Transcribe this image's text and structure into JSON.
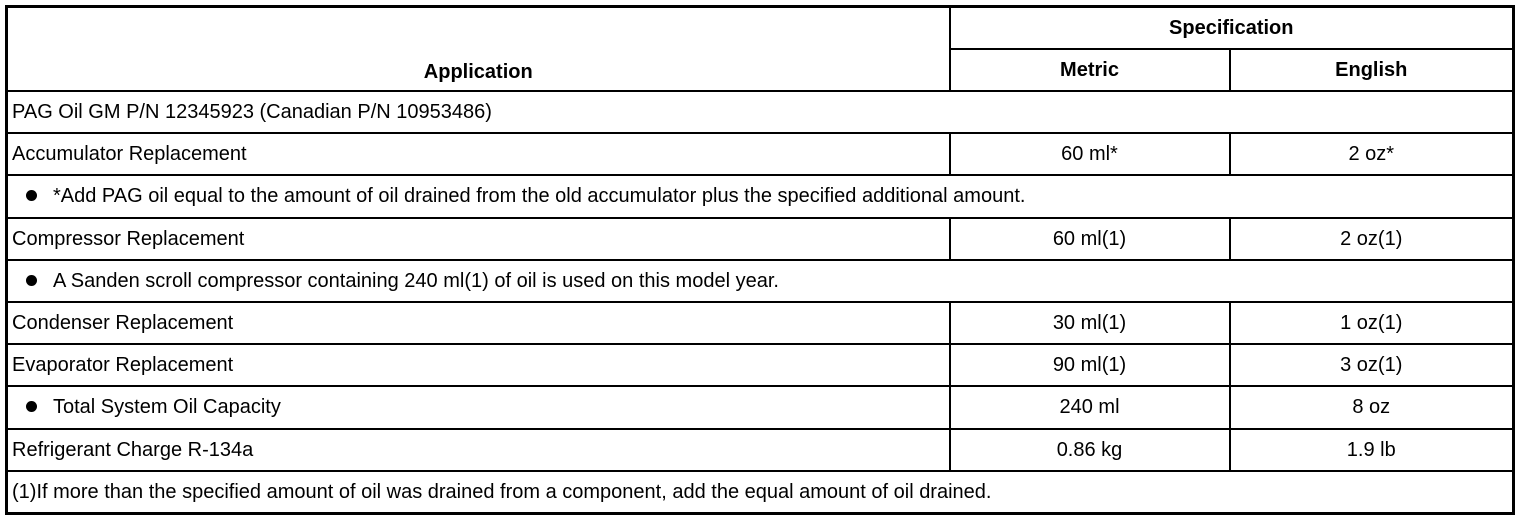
{
  "header": {
    "application": "Application",
    "specification": "Specification",
    "metric": "Metric",
    "english": "English"
  },
  "rows": [
    {
      "type": "full",
      "text": "PAG Oil GM P/N 12345923 (Canadian P/N 10953486)"
    },
    {
      "type": "spec",
      "application": "Accumulator Replacement",
      "metric": "60 ml*",
      "english": "2 oz*"
    },
    {
      "type": "note",
      "text": "*Add PAG oil equal to the amount of oil drained from the old accumulator plus the specified additional amount."
    },
    {
      "type": "spec",
      "application": "Compressor Replacement",
      "metric": "60 ml(1)",
      "english": "2 oz(1)"
    },
    {
      "type": "note",
      "text": "A Sanden scroll compressor containing 240 ml(1) of oil is used on this model year."
    },
    {
      "type": "spec",
      "application": "Condenser Replacement",
      "metric": "30 ml(1)",
      "english": "1 oz(1)"
    },
    {
      "type": "spec",
      "application": "Evaporator Replacement",
      "metric": "90 ml(1)",
      "english": "3 oz(1)"
    },
    {
      "type": "bullet-spec",
      "application": "Total System Oil Capacity",
      "metric": "240 ml",
      "english": "8 oz"
    },
    {
      "type": "spec",
      "application": "Refrigerant Charge R-134a",
      "metric": "0.86 kg",
      "english": "1.9 lb"
    },
    {
      "type": "full",
      "text": "(1)If more than the specified amount of oil was drained from a component, add the equal amount of oil drained."
    }
  ]
}
